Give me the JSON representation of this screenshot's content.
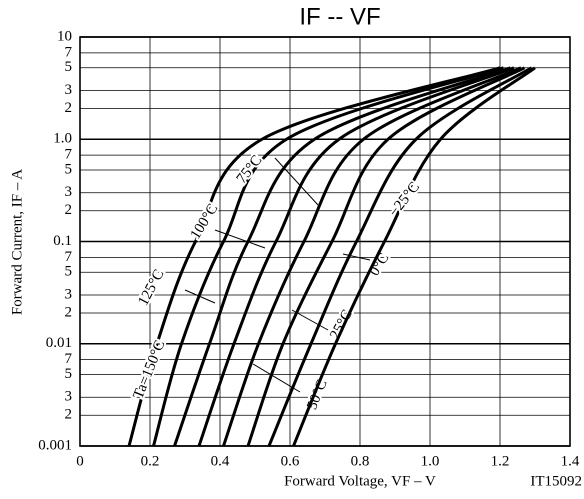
{
  "chart_data": {
    "type": "line",
    "title": "IF -- VF",
    "xlabel": "Forward Voltage, VF – V",
    "ylabel": "Forward Current, IF – A",
    "annotation": "IT15092",
    "log_y": true,
    "grid": true,
    "color": "#000000",
    "xlim": [
      0,
      1.4
    ],
    "ylim": [
      0.001,
      10
    ],
    "xticks": [
      0,
      0.2,
      0.4,
      0.6,
      0.8,
      {
        "value": 1,
        "label": "1.0"
      },
      1.2,
      1.4
    ],
    "yticks": [
      0.001,
      {
        "value": 0.002,
        "label": "2"
      },
      {
        "value": 0.003,
        "label": "3"
      },
      {
        "value": 0.005,
        "label": "5"
      },
      {
        "value": 0.007,
        "label": "7"
      },
      0.01,
      {
        "value": 0.02,
        "label": "2"
      },
      {
        "value": 0.03,
        "label": "3"
      },
      {
        "value": 0.05,
        "label": "5"
      },
      {
        "value": 0.07,
        "label": "7"
      },
      0.1,
      {
        "value": 0.2,
        "label": "2"
      },
      {
        "value": 0.3,
        "label": "3"
      },
      {
        "value": 0.5,
        "label": "5"
      },
      {
        "value": 0.7,
        "label": "7"
      },
      {
        "value": 1,
        "label": "1.0"
      },
      2,
      3,
      5,
      7,
      10
    ],
    "series": [
      {
        "name": "Ta=150°C",
        "x": [
          0.14,
          0.22,
          0.33,
          0.52,
          1.2
        ],
        "values": [
          0.001,
          0.01,
          0.1,
          1,
          5
        ]
      },
      {
        "name": "125°C",
        "x": [
          0.21,
          0.29,
          0.41,
          0.59,
          1.21
        ],
        "values": [
          0.001,
          0.01,
          0.1,
          1,
          5
        ]
      },
      {
        "name": "100°C",
        "x": [
          0.27,
          0.37,
          0.48,
          0.67,
          1.23
        ],
        "values": [
          0.001,
          0.01,
          0.1,
          1,
          5
        ]
      },
      {
        "name": "75°C",
        "x": [
          0.34,
          0.44,
          0.56,
          0.74,
          1.24
        ],
        "values": [
          0.001,
          0.01,
          0.1,
          1,
          5
        ]
      },
      {
        "name": "50°C",
        "x": [
          0.41,
          0.51,
          0.64,
          0.81,
          1.26
        ],
        "values": [
          0.001,
          0.01,
          0.1,
          1,
          5
        ]
      },
      {
        "name": "25°C",
        "x": [
          0.48,
          0.58,
          0.72,
          0.88,
          1.27
        ],
        "values": [
          0.001,
          0.01,
          0.1,
          1,
          5
        ]
      },
      {
        "name": "0°C",
        "x": [
          0.54,
          0.66,
          0.79,
          0.96,
          1.29
        ],
        "values": [
          0.001,
          0.01,
          0.1,
          1,
          5
        ]
      },
      {
        "name": "−25°C",
        "x": [
          0.61,
          0.73,
          0.87,
          1.03,
          1.3
        ],
        "values": [
          0.001,
          0.01,
          0.1,
          1,
          5
        ]
      }
    ]
  }
}
